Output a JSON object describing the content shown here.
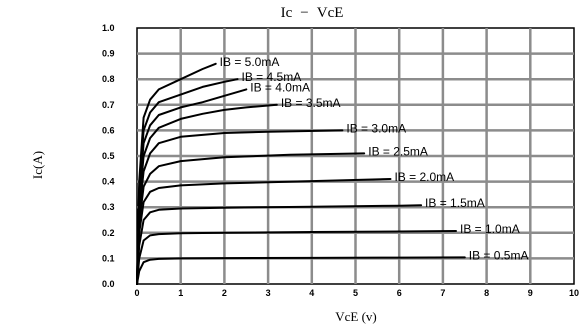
{
  "chart_data": {
    "type": "line",
    "title": "Ic − VcE",
    "title_parts": [
      "Ic",
      "VcE"
    ],
    "xlabel": "VcE (v)",
    "ylabel": "Ic(A)",
    "xlim": [
      0,
      10
    ],
    "ylim": [
      0,
      1.0
    ],
    "grid": true,
    "x_ticks": [
      "0",
      "1",
      "2",
      "3",
      "4",
      "5",
      "6",
      "7",
      "8",
      "9",
      "10"
    ],
    "y_ticks": [
      "0.0",
      "0.1",
      "0.2",
      "0.3",
      "0.4",
      "0.5",
      "0.6",
      "0.7",
      "0.8",
      "0.9",
      "1.0"
    ],
    "series": [
      {
        "name": "IB = 0.5mA",
        "x": [
          0,
          0.05,
          0.15,
          0.3,
          0.5,
          1,
          2,
          4,
          6,
          7.5
        ],
        "y": [
          0,
          0.05,
          0.085,
          0.095,
          0.098,
          0.1,
          0.101,
          0.102,
          0.103,
          0.104
        ]
      },
      {
        "name": "IB = 1.0mA",
        "x": [
          0,
          0.05,
          0.15,
          0.3,
          0.5,
          1,
          2,
          4,
          6,
          7.3
        ],
        "y": [
          0,
          0.1,
          0.17,
          0.19,
          0.195,
          0.198,
          0.2,
          0.203,
          0.205,
          0.207
        ]
      },
      {
        "name": "IB = 1.5mA",
        "x": [
          0,
          0.05,
          0.15,
          0.3,
          0.5,
          1,
          2,
          4,
          6,
          6.5
        ],
        "y": [
          0,
          0.15,
          0.25,
          0.28,
          0.29,
          0.295,
          0.298,
          0.302,
          0.306,
          0.308
        ]
      },
      {
        "name": "IB = 2.0mA",
        "x": [
          0,
          0.05,
          0.15,
          0.3,
          0.5,
          1,
          2,
          4,
          5.8
        ],
        "y": [
          0,
          0.2,
          0.32,
          0.36,
          0.375,
          0.385,
          0.393,
          0.402,
          0.41
        ]
      },
      {
        "name": "IB = 2.5mA",
        "x": [
          0,
          0.05,
          0.15,
          0.3,
          0.5,
          1,
          2,
          3.5,
          5.2
        ],
        "y": [
          0,
          0.24,
          0.38,
          0.43,
          0.46,
          0.48,
          0.495,
          0.505,
          0.51
        ]
      },
      {
        "name": "IB = 3.0mA",
        "x": [
          0,
          0.05,
          0.15,
          0.3,
          0.5,
          1,
          2,
          3,
          4.7
        ],
        "y": [
          0,
          0.28,
          0.44,
          0.51,
          0.55,
          0.575,
          0.59,
          0.595,
          0.6
        ]
      },
      {
        "name": "IB = 3.5mA",
        "x": [
          0,
          0.05,
          0.15,
          0.3,
          0.5,
          1,
          1.5,
          2,
          2.5,
          3.2
        ],
        "y": [
          0,
          0.31,
          0.5,
          0.57,
          0.61,
          0.645,
          0.665,
          0.68,
          0.69,
          0.7
        ]
      },
      {
        "name": "IB = 4.0mA",
        "x": [
          0,
          0.05,
          0.15,
          0.3,
          0.5,
          1,
          1.5,
          2,
          2.5,
          2.5
        ],
        "y": [
          0,
          0.34,
          0.55,
          0.62,
          0.66,
          0.69,
          0.71,
          0.735,
          0.76,
          0.76
        ]
      },
      {
        "name": "IB = 4.5mA",
        "x": [
          0,
          0.05,
          0.15,
          0.3,
          0.5,
          1,
          1.5,
          2,
          2.3
        ],
        "y": [
          0,
          0.37,
          0.6,
          0.67,
          0.71,
          0.74,
          0.77,
          0.79,
          0.8
        ]
      },
      {
        "name": "IB = 5.0mA",
        "x": [
          0,
          0.05,
          0.15,
          0.3,
          0.5,
          1,
          1.5,
          1.8
        ],
        "y": [
          0,
          0.4,
          0.65,
          0.72,
          0.76,
          0.8,
          0.84,
          0.86
        ]
      }
    ]
  }
}
